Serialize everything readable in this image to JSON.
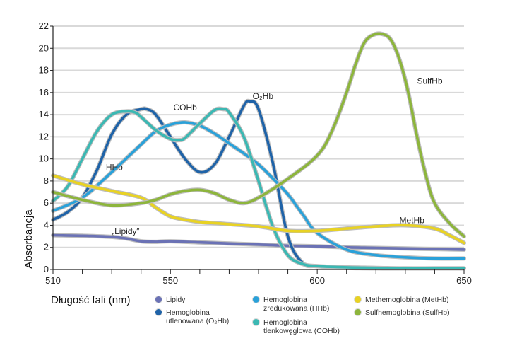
{
  "chart_data": {
    "type": "line",
    "xlabel": "Długość fali (nm)",
    "ylabel": "Absorbancja",
    "xlim": [
      510,
      650
    ],
    "ylim": [
      0,
      22
    ],
    "xticks": [
      510,
      550,
      600,
      650
    ],
    "yticks": [
      0,
      2,
      4,
      6,
      8,
      10,
      12,
      14,
      16,
      18,
      20,
      22
    ],
    "grid": "horizontal",
    "series": [
      {
        "key": "lipids",
        "name": "„Lipidy”",
        "color": "#6b72b5",
        "label_at": [
          530,
          3.2
        ],
        "x": [
          510,
          520,
          530,
          535,
          540,
          545,
          550,
          560,
          570,
          580,
          590,
          600,
          610,
          620,
          630,
          640,
          650
        ],
        "y": [
          3.1,
          3.05,
          2.95,
          2.8,
          2.55,
          2.5,
          2.55,
          2.45,
          2.35,
          2.25,
          2.15,
          2.1,
          2.0,
          1.95,
          1.9,
          1.85,
          1.8
        ]
      },
      {
        "key": "o2hb",
        "name": "O₂Hb",
        "color": "#1f63a8",
        "label_at": [
          578,
          15.4
        ],
        "x": [
          510,
          515,
          520,
          525,
          530,
          535,
          540,
          542,
          545,
          550,
          555,
          560,
          565,
          570,
          575,
          577,
          580,
          585,
          590,
          595,
          600,
          610,
          620,
          630,
          640,
          650
        ],
        "y": [
          4.5,
          5.2,
          6.5,
          9.0,
          12.2,
          14.0,
          14.5,
          14.5,
          14.0,
          12.0,
          10.0,
          8.8,
          9.5,
          12.0,
          14.8,
          15.2,
          14.5,
          9.5,
          3.0,
          0.6,
          0.3,
          0.15,
          0.1,
          0.1,
          0.1,
          0.1
        ]
      },
      {
        "key": "hhb",
        "name": "HHb",
        "color": "#2aa1d9",
        "label_at": [
          528,
          9.0
        ],
        "x": [
          510,
          520,
          530,
          540,
          545,
          550,
          555,
          560,
          565,
          570,
          575,
          580,
          585,
          590,
          595,
          600,
          610,
          620,
          630,
          640,
          650
        ],
        "y": [
          5.3,
          6.5,
          8.8,
          11.3,
          12.5,
          13.1,
          13.3,
          13.0,
          12.3,
          11.4,
          10.5,
          9.5,
          8.2,
          6.8,
          5.0,
          3.3,
          1.8,
          1.3,
          1.1,
          1.0,
          1.0
        ]
      },
      {
        "key": "cohb",
        "name": "COHb",
        "color": "#3bb8b3",
        "label_at": [
          551,
          14.4
        ],
        "x": [
          510,
          515,
          520,
          525,
          530,
          535,
          538,
          540,
          545,
          550,
          553,
          555,
          560,
          565,
          568,
          570,
          575,
          580,
          585,
          590,
          595,
          600,
          610,
          620,
          630,
          640,
          650
        ],
        "y": [
          6.2,
          7.5,
          10.0,
          12.5,
          14.0,
          14.3,
          14.2,
          13.8,
          12.6,
          11.8,
          11.7,
          11.9,
          13.2,
          14.4,
          14.5,
          14.2,
          12.0,
          8.0,
          3.8,
          1.3,
          0.5,
          0.3,
          0.2,
          0.15,
          0.1,
          0.1,
          0.1
        ]
      },
      {
        "key": "methb",
        "name": "MetHb",
        "color": "#e8d224",
        "label_at": [
          628,
          4.2
        ],
        "x": [
          510,
          520,
          530,
          540,
          545,
          550,
          555,
          560,
          570,
          580,
          590,
          600,
          610,
          620,
          630,
          640,
          645,
          650
        ],
        "y": [
          8.5,
          7.7,
          7.1,
          6.5,
          5.6,
          4.8,
          4.5,
          4.3,
          4.1,
          3.9,
          3.5,
          3.5,
          3.7,
          3.9,
          4.0,
          3.7,
          3.1,
          2.4
        ]
      },
      {
        "key": "sulfhb",
        "name": "SulfHb",
        "color": "#8db53c",
        "label_at": [
          634,
          16.8
        ],
        "x": [
          510,
          520,
          530,
          540,
          545,
          550,
          555,
          560,
          565,
          570,
          575,
          580,
          590,
          600,
          605,
          610,
          613,
          616,
          619,
          622,
          625,
          628,
          631,
          634,
          637,
          640,
          645,
          650
        ],
        "y": [
          7.0,
          6.3,
          5.8,
          6.0,
          6.3,
          6.8,
          7.1,
          7.2,
          6.9,
          6.3,
          6.0,
          6.5,
          8.2,
          10.3,
          12.5,
          16.0,
          18.5,
          20.5,
          21.2,
          21.3,
          20.8,
          19.0,
          16.0,
          12.0,
          8.5,
          6.0,
          4.2,
          3.0
        ]
      }
    ],
    "legend": {
      "position": "bottom",
      "items": [
        {
          "text": "Lipidy",
          "color": "#6b72b5"
        },
        {
          "text": "Hemoglobina\nutlenowana (O₂Hb)",
          "color": "#1f63a8"
        },
        {
          "text": "Hemoglobina\nzredukowana (HHb)",
          "color": "#2aa1d9"
        },
        {
          "text": "Hemoglobina\ntlenkowęglowa (COHb)",
          "color": "#3bb8b3"
        },
        {
          "text": "Methemoglobina (MetHb)",
          "color": "#e8d224"
        },
        {
          "text": "Sulfhemoglobina (SulfHb)",
          "color": "#8db53c"
        }
      ]
    }
  }
}
